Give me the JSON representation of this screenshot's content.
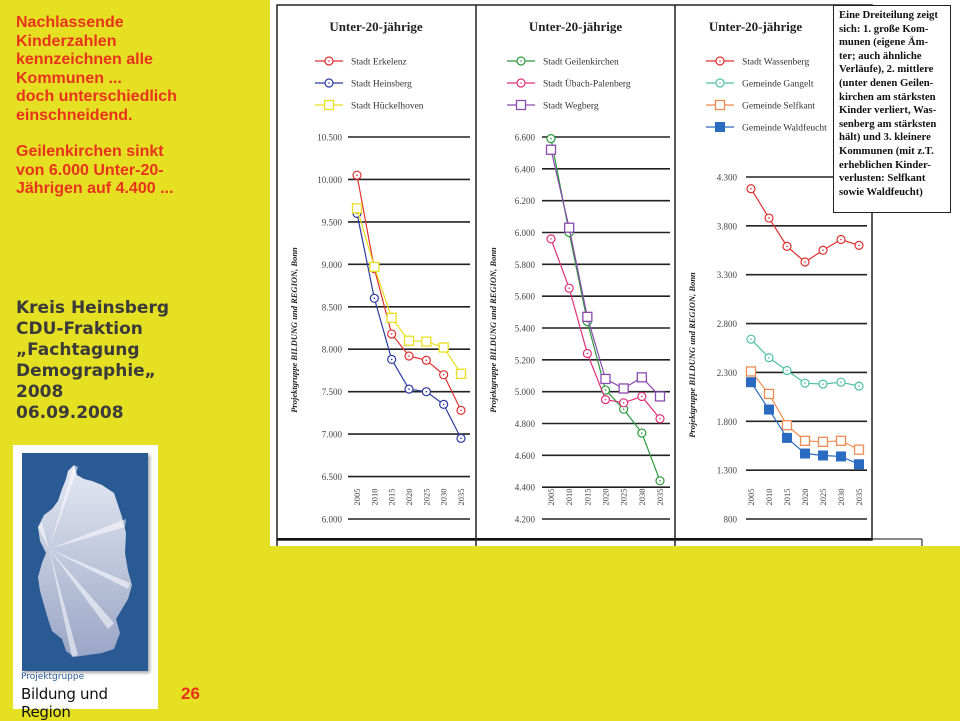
{
  "sidebar": {
    "headline_lines": [
      "Nachlassende",
      "Kinderzahlen",
      "kennzeichnen alle",
      "Kommunen ...",
      "doch unterschiedlich",
      "einschneidend."
    ],
    "subline_lines": [
      "Geilenkirchen sinkt",
      "von 6.000 Unter-20-",
      "Jährigen auf 4.400 ..."
    ],
    "event_lines": [
      "Kreis Heinsberg",
      "CDU-Fraktion",
      "„Fachtagung",
      "Demographie„",
      "2008",
      "06.09.2008"
    ],
    "logo": {
      "subtitle": "Projektgruppe",
      "title": "Bildung und Region",
      "icon": "germany-map-icon"
    },
    "page_number": "26"
  },
  "colors": {
    "background": "#e6e022",
    "headline": "#e8321e",
    "event_text": "#3a3a3a",
    "logo_blue": "#2a5a93"
  },
  "note": {
    "text": "Eine Dreiteilung zeigt sich: 1. große Kommunen (eigene Ämter; auch ähnliche Verläufe), 2. mittlere (unter denen Geilenkirchen am stärksten Kinder verliert, Wassenberg am stärksten hält) und 3. kleinere Kommunen (mit z.T. erheblichen Kinderverlusten: Selfkant sowie Waldfeucht)",
    "lines": [
      "Eine Dreiteilung zeigt",
      "sich: 1. große Kom-",
      "munen (eigene Äm-",
      "ter; auch ähnliche",
      "Verläufe), 2. mittlere",
      "(unter denen Geilen-",
      "kirchen am stärksten",
      "Kinder verliert, Was-",
      "senberg am stärksten",
      "hält) und 3. kleinere",
      "Kommunen (mit z.T.",
      "erheblichen Kinder-",
      "verlusten: Selfkant",
      "sowie Waldfeucht)"
    ]
  },
  "chart_data": [
    {
      "type": "line",
      "title": "Unter-20-jährige",
      "ylabel": "Projektgruppe BILDUNG und REGION, Bonn",
      "xlabel": "",
      "x": [
        "2005",
        "2010",
        "2015",
        "2020",
        "2025",
        "2030",
        "2035"
      ],
      "ylim": [
        6000,
        10500
      ],
      "yticks": [
        10500,
        10000,
        9500,
        9000,
        8500,
        8000,
        7500,
        7000,
        6500,
        6000
      ],
      "ytick_labels": [
        "10.500",
        "10.000",
        "9.500",
        "9.000",
        "8.500",
        "8.000",
        "7.500",
        "7.000",
        "6.500",
        "6.000"
      ],
      "grid": true,
      "legend": "top",
      "series": [
        {
          "name": "Stadt Erkelenz",
          "color": "#e03030",
          "marker": "circle",
          "values": [
            10050,
            8950,
            8180,
            7920,
            7870,
            7700,
            7280
          ]
        },
        {
          "name": "Stadt Heinsberg",
          "color": "#2a3aa0",
          "marker": "circle",
          "values": [
            9600,
            8600,
            7880,
            7530,
            7500,
            7350,
            6950
          ]
        },
        {
          "name": "Stadt Hückelhoven",
          "color": "#e8e020",
          "marker": "square",
          "values": [
            9660,
            8970,
            8370,
            8100,
            8090,
            8020,
            7710
          ]
        }
      ]
    },
    {
      "type": "line",
      "title": "Unter-20-jährige",
      "ylabel": "Projektgruppe BILDUNG und REGION, Bonn",
      "xlabel": "",
      "x": [
        "2005",
        "2010",
        "2015",
        "2020",
        "2025",
        "2030",
        "2035"
      ],
      "ylim": [
        4200,
        6600
      ],
      "yticks": [
        6600,
        6400,
        6200,
        6000,
        5800,
        5600,
        5400,
        5200,
        5000,
        4800,
        4600,
        4400,
        4200
      ],
      "ytick_labels": [
        "6.600",
        "6.400",
        "6.200",
        "6.000",
        "5.800",
        "5.600",
        "5.400",
        "5.200",
        "5.000",
        "4.800",
        "4.600",
        "4.400",
        "4.200"
      ],
      "grid": true,
      "legend": "top",
      "series": [
        {
          "name": "Stadt Geilenkirchen",
          "color": "#2a9a3a",
          "marker": "circle",
          "values": [
            6590,
            6000,
            5440,
            5010,
            4890,
            4740,
            4440
          ]
        },
        {
          "name": "Stadt Übach-Palenberg",
          "color": "#e0307a",
          "marker": "circle",
          "values": [
            5960,
            5650,
            5240,
            4950,
            4930,
            4970,
            4830
          ]
        },
        {
          "name": "Stadt Wegberg",
          "color": "#8a4ab0",
          "marker": "square",
          "values": [
            6520,
            6030,
            5470,
            5080,
            5020,
            5090,
            4970
          ]
        }
      ]
    },
    {
      "type": "line",
      "title": "Unter-20-jährige",
      "ylabel": "Projektgruppe BILDUNG und REGION, Bonn",
      "xlabel": "",
      "x": [
        "2005",
        "2010",
        "2015",
        "2020",
        "2025",
        "2030",
        "2035"
      ],
      "ylim": [
        800,
        4300
      ],
      "yticks": [
        4300,
        3800,
        3300,
        2800,
        2300,
        1800,
        1300,
        800
      ],
      "ytick_labels": [
        "4.300",
        "3.800",
        "3.300",
        "2.800",
        "2.300",
        "1.800",
        "1.300",
        "800"
      ],
      "grid": true,
      "legend": "top",
      "series": [
        {
          "name": "Stadt Wassenberg",
          "color": "#e03030",
          "marker": "circle",
          "values": [
            4180,
            3880,
            3590,
            3430,
            3550,
            3660,
            3600
          ]
        },
        {
          "name": "Gemeinde Gangelt",
          "color": "#50c0a0",
          "marker": "circle",
          "values": [
            2640,
            2450,
            2320,
            2190,
            2180,
            2200,
            2160
          ]
        },
        {
          "name": "Gemeinde Selfkant",
          "color": "#f08a50",
          "marker": "square",
          "values": [
            2310,
            2080,
            1760,
            1600,
            1590,
            1600,
            1510
          ]
        },
        {
          "name": "Gemeinde Waldfeucht",
          "color": "#2a6ac0",
          "marker": "filled-square",
          "values": [
            2200,
            1920,
            1630,
            1470,
            1450,
            1440,
            1360
          ]
        }
      ]
    }
  ]
}
